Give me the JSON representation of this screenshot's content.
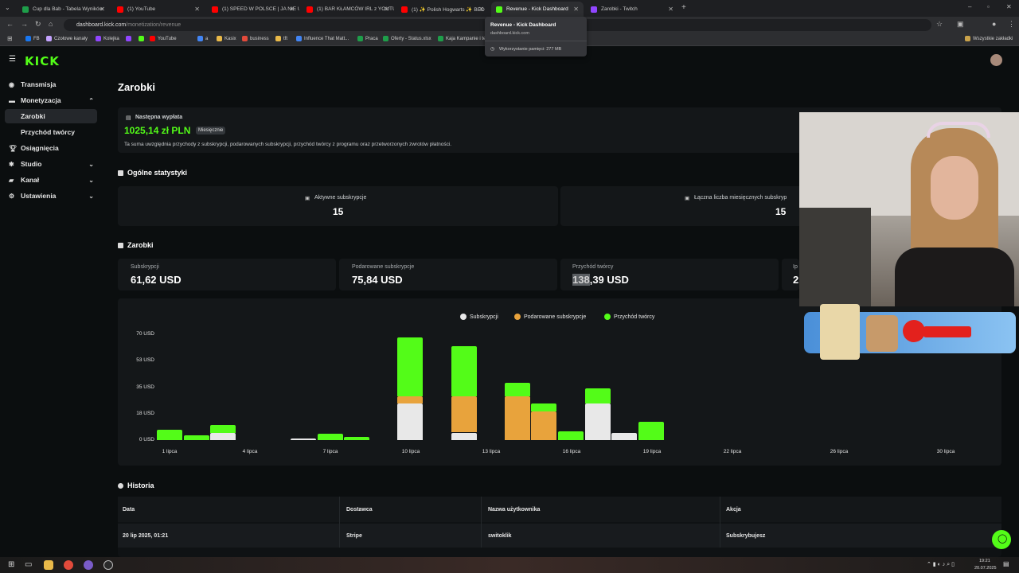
{
  "browser": {
    "tabs": [
      {
        "title": "Cup dla Bab - Tabela Wyników",
        "color": "#1e9e4a"
      },
      {
        "title": "(1) YouTube",
        "color": "#ff0000"
      },
      {
        "title": "(1) SPEED W POLSCE | JA NIE U...",
        "color": "#ff0000"
      },
      {
        "title": "(1) BAR KŁAMCÓW IRL z YOUTU...",
        "color": "#ff0000"
      },
      {
        "title": "(1) ✨ Polish Hogwarts ✨ BED",
        "color": "#ff0000"
      },
      {
        "title": "Revenue - Kick Dashboard",
        "color": "#53fc18"
      },
      {
        "title": "Zarobki - Twitch",
        "color": "#9146ff"
      }
    ],
    "url_host": "dashboard.kick.com",
    "url_path": "/monetization/revenue",
    "bookmarks": [
      "FB",
      "Czołowe kanały",
      "Kolejka",
      "",
      "",
      "YouTube",
      "a",
      "Kasix",
      "business",
      "tft",
      "Influence That Matt...",
      "Praca",
      "Oferty - Status.xlsx",
      "Kaja Kampanie i te"
    ],
    "all_bookmarks": "Wszystkie zakładki",
    "tooltip": {
      "title": "Revenue - Kick Dashboard",
      "host": "dashboard.kick.com",
      "memory": "Wykorzystanie pamięci: 277 MB"
    }
  },
  "sidebar": {
    "logo": "KICK",
    "items": [
      {
        "label": "Transmisja",
        "icon": "broadcast-icon"
      },
      {
        "label": "Monetyzacja",
        "icon": "money-icon"
      },
      {
        "label": "Zarobki",
        "icon": ""
      },
      {
        "label": "Przychód twórcy",
        "icon": ""
      },
      {
        "label": "Osiągnięcia",
        "icon": "trophy-icon"
      },
      {
        "label": "Studio",
        "icon": "studio-icon"
      },
      {
        "label": "Kanał",
        "icon": "channel-icon"
      },
      {
        "label": "Ustawienia",
        "icon": "gear-icon"
      }
    ]
  },
  "page": {
    "title": "Zarobki",
    "payout": {
      "label": "Następna wypłata",
      "amount": "1025,14 zł PLN",
      "badge": "Miesięcznie",
      "note": "Ta suma uwzględnia przychody z subskrypcji, podarowanych subskrypcji, przychód twórcy z programu oraz przetworzonych zwrotów płatności."
    },
    "stats": {
      "title": "Ogólne statystyki",
      "active_label": "Aktywne subskrypcje",
      "active_value": "15",
      "monthly_label": "Łączna liczba miesięcznych subskryp",
      "monthly_value": "15"
    },
    "earnings": {
      "title": "Zarobki",
      "subs_label": "Subskrypcji",
      "subs_value": "61,62 USD",
      "gifted_label": "Podarowane subskrypcje",
      "gifted_value": "75,84 USD",
      "creator_label": "Przychód twórcy",
      "creator_value_hl": "138",
      "creator_value_rest": ",39 USD",
      "cut_label": "Ip",
      "cut_value": "2"
    },
    "history": {
      "title": "Historia",
      "columns": [
        "Data",
        "Dostawca",
        "Nazwa użytkownika",
        "Akcja"
      ],
      "rows": [
        [
          "20 lip 2025, 01:21",
          "Stripe",
          "switoklik",
          "Subskrybujesz"
        ]
      ]
    }
  },
  "chart_data": {
    "type": "bar",
    "stacked": true,
    "ylabel_unit": "USD",
    "yticks": [
      "0 USD",
      "18 USD",
      "35 USD",
      "53 USD",
      "70 USD"
    ],
    "ylim": [
      0,
      70
    ],
    "xtick_labels": [
      "1 lipca",
      "4 lipca",
      "7 lipca",
      "10 lipca",
      "13 lipca",
      "16 lipca",
      "19 lipca",
      "22 lipca",
      "26 lipca",
      "30 lipca"
    ],
    "colors": {
      "Subskrypcji": "#e8e8e8",
      "Podarowane subskrypcje": "#e8a33c",
      "Przychód twórcy": "#53fc18"
    },
    "legend": [
      "Subskrypcji",
      "Podarowane subskrypcje",
      "Przychód twórcy"
    ],
    "days": [
      "1 lipca",
      "2 lipca",
      "3 lipca",
      "4 lipca",
      "5 lipca",
      "6 lipca",
      "7 lipca",
      "8 lipca",
      "9 lipca",
      "10 lipca",
      "11 lipca",
      "12 lipca",
      "13 lipca",
      "14 lipca",
      "15 lipca",
      "16 lipca",
      "17 lipca",
      "18 lipca",
      "19 lipca"
    ],
    "series": [
      {
        "name": "Subskrypcji",
        "values": [
          0,
          0,
          5,
          0,
          0,
          1,
          0,
          0,
          0,
          24,
          0,
          5,
          0,
          0,
          0,
          0,
          24,
          5,
          0
        ]
      },
      {
        "name": "Podarowane subskrypcje",
        "values": [
          0,
          0,
          0,
          0,
          0,
          0,
          0,
          0,
          0,
          5,
          0,
          24,
          0,
          29,
          19,
          0,
          0,
          0,
          0
        ]
      },
      {
        "name": "Przychód twórcy",
        "values": [
          7,
          3,
          5,
          0,
          0,
          0,
          4,
          2,
          0,
          39,
          0,
          33,
          0,
          9,
          5,
          6,
          10,
          0,
          12
        ]
      }
    ]
  }
}
